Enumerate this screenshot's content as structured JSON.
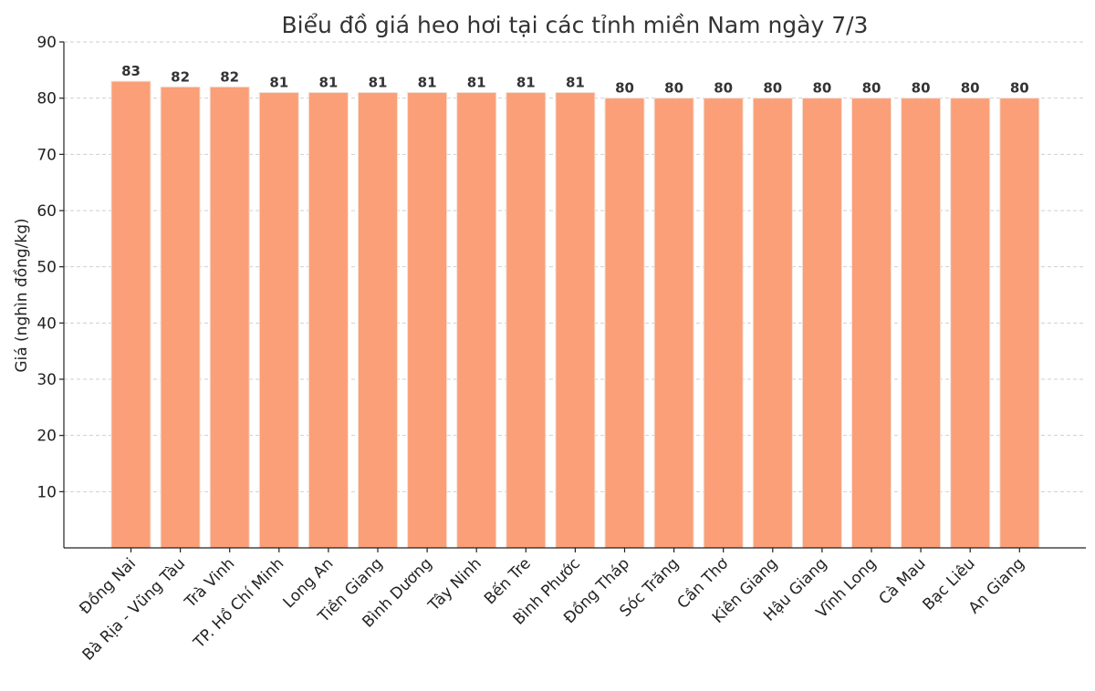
{
  "chart_data": {
    "type": "bar",
    "title": "Biểu đồ giá heo hơi tại các tỉnh miền Nam ngày 7/3",
    "xlabel": "",
    "ylabel": "Giá (nghìn đồng/kg)",
    "ylim": [
      0,
      90
    ],
    "yticks": [
      10,
      20,
      30,
      40,
      50,
      60,
      70,
      80,
      90
    ],
    "grid": true,
    "bar_color": "#fa9f78",
    "categories": [
      "Đồng Nai",
      "Bà Rịa - Vũng Tàu",
      "Trà Vinh",
      "TP. Hồ Chí Minh",
      "Long An",
      "Tiền Giang",
      "Bình Dương",
      "Tây Ninh",
      "Bến Tre",
      "Bình Phước",
      "Đồng Tháp",
      "Sóc Trăng",
      "Cần Thơ",
      "Kiên Giang",
      "Hậu Giang",
      "Vĩnh Long",
      "Cà Mau",
      "Bạc Liêu",
      "An Giang"
    ],
    "values": [
      83,
      82,
      82,
      81,
      81,
      81,
      81,
      81,
      81,
      81,
      80,
      80,
      80,
      80,
      80,
      80,
      80,
      80,
      80
    ]
  }
}
